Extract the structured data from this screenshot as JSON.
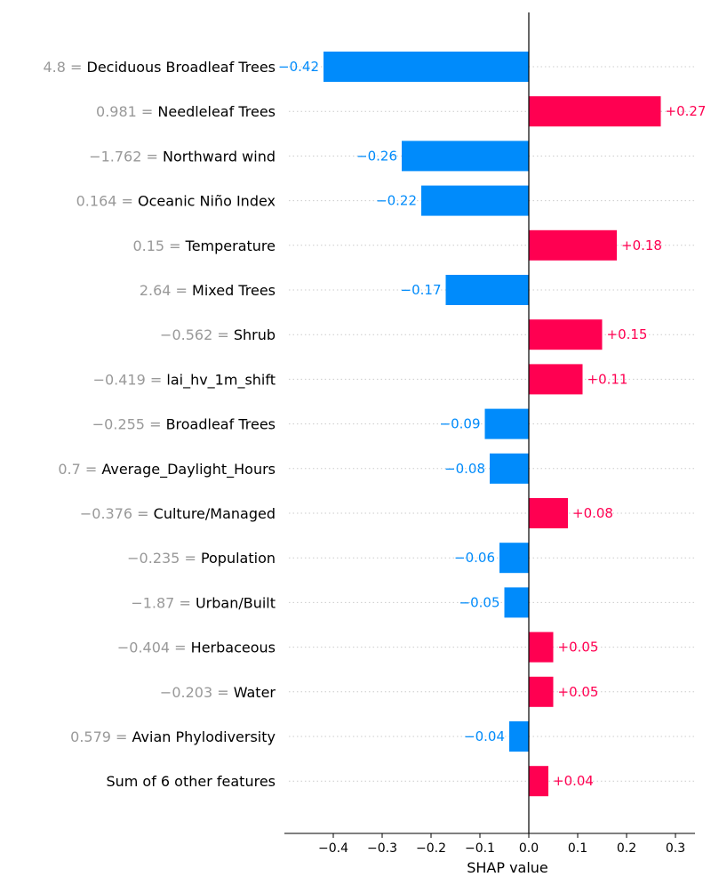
{
  "chart_data": {
    "type": "bar",
    "orientation": "horizontal",
    "title": "",
    "xlabel": "SHAP value",
    "ylabel": "",
    "xlim": [
      -0.5,
      0.34
    ],
    "xticks": [
      -0.4,
      -0.3,
      -0.2,
      -0.1,
      0.0,
      0.1,
      0.2,
      0.3
    ],
    "xtick_labels": [
      "−0.4",
      "−0.3",
      "−0.2",
      "−0.1",
      "0.0",
      "0.1",
      "0.2",
      "0.3"
    ],
    "grid": "dotted horizontal guide per feature",
    "legend": "none",
    "colors": {
      "positive": "#ff0051",
      "negative": "#008bfb",
      "feature_value": "#999999",
      "guide": "#cccccc"
    },
    "features": [
      {
        "value_text": "4.8",
        "name": "Deciduous Broadleaf Trees",
        "shap": -0.42,
        "label": "−0.42"
      },
      {
        "value_text": "0.981",
        "name": "Needleleaf Trees",
        "shap": 0.27,
        "label": "+0.27"
      },
      {
        "value_text": "−1.762",
        "name": "Northward wind",
        "shap": -0.26,
        "label": "−0.26"
      },
      {
        "value_text": "0.164",
        "name": "Oceanic Niño Index",
        "shap": -0.22,
        "label": "−0.22"
      },
      {
        "value_text": "0.15",
        "name": "Temperature",
        "shap": 0.18,
        "label": "+0.18"
      },
      {
        "value_text": "2.64",
        "name": "Mixed Trees",
        "shap": -0.17,
        "label": "−0.17"
      },
      {
        "value_text": "−0.562",
        "name": "Shrub",
        "shap": 0.15,
        "label": "+0.15"
      },
      {
        "value_text": "−0.419",
        "name": "lai_hv_1m_shift",
        "shap": 0.11,
        "label": "+0.11"
      },
      {
        "value_text": "−0.255",
        "name": "Broadleaf Trees",
        "shap": -0.09,
        "label": "−0.09"
      },
      {
        "value_text": "0.7",
        "name": "Average_Daylight_Hours",
        "shap": -0.08,
        "label": "−0.08"
      },
      {
        "value_text": "−0.376",
        "name": "Culture/Managed",
        "shap": 0.08,
        "label": "+0.08"
      },
      {
        "value_text": "−0.235",
        "name": "Population",
        "shap": -0.06,
        "label": "−0.06"
      },
      {
        "value_text": "−1.87",
        "name": "Urban/Built",
        "shap": -0.05,
        "label": "−0.05"
      },
      {
        "value_text": "−0.404",
        "name": "Herbaceous",
        "shap": 0.05,
        "label": "+0.05"
      },
      {
        "value_text": "−0.203",
        "name": "Water",
        "shap": 0.05,
        "label": "+0.05"
      },
      {
        "value_text": "0.579",
        "name": "Avian Phylodiversity",
        "shap": -0.04,
        "label": "−0.04"
      },
      {
        "value_text": "",
        "name": "Sum of 6 other features",
        "shap": 0.04,
        "label": "+0.04"
      }
    ]
  }
}
